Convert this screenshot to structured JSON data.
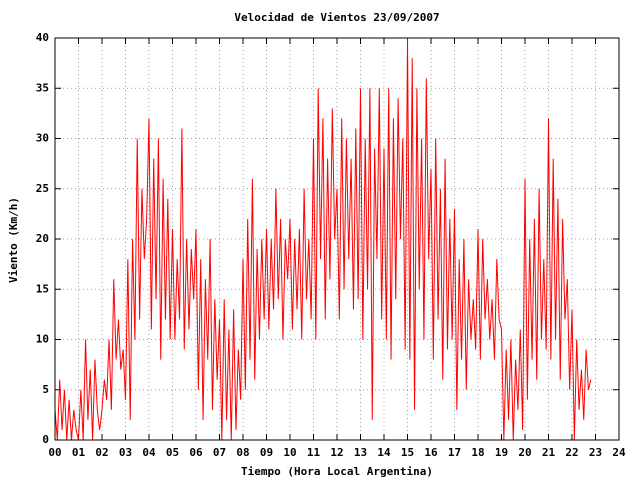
{
  "chart_data": {
    "type": "line",
    "title": "Velocidad de Vientos 23/09/2007",
    "x_label": "Tiempo (Hora Local Argentina)",
    "y_label": "Viento (Km/h)",
    "color": "#ff0000",
    "grid": true,
    "xlim": [
      0,
      24
    ],
    "ylim": [
      0,
      40
    ],
    "xticks": [
      {
        "value": 0,
        "label": "00"
      },
      {
        "value": 1,
        "label": "01"
      },
      {
        "value": 2,
        "label": "02"
      },
      {
        "value": 3,
        "label": "03"
      },
      {
        "value": 4,
        "label": "04"
      },
      {
        "value": 5,
        "label": "05"
      },
      {
        "value": 6,
        "label": "06"
      },
      {
        "value": 7,
        "label": "07"
      },
      {
        "value": 8,
        "label": "08"
      },
      {
        "value": 9,
        "label": "09"
      },
      10,
      11,
      12,
      13,
      14,
      15,
      16,
      17,
      18,
      19,
      20,
      21,
      22,
      23,
      24
    ],
    "yticks": [
      0,
      5,
      10,
      15,
      20,
      25,
      30,
      35,
      40
    ],
    "x": [
      0,
      0.1,
      0.2,
      0.3,
      0.4,
      0.5,
      0.6,
      0.7,
      0.8,
      0.9,
      1,
      1.1,
      1.2,
      1.3,
      1.4,
      1.5,
      1.6,
      1.7,
      1.8,
      1.9,
      2,
      2.1,
      2.2,
      2.3,
      2.4,
      2.5,
      2.6,
      2.7,
      2.8,
      2.9,
      3,
      3.1,
      3.2,
      3.3,
      3.4,
      3.5,
      3.6,
      3.7,
      3.8,
      3.9,
      4,
      4.1,
      4.2,
      4.3,
      4.4,
      4.5,
      4.6,
      4.7,
      4.8,
      4.9,
      5,
      5.1,
      5.2,
      5.3,
      5.4,
      5.5,
      5.6,
      5.7,
      5.8,
      5.9,
      6,
      6.1,
      6.2,
      6.3,
      6.4,
      6.5,
      6.6,
      6.7,
      6.8,
      6.9,
      7,
      7.1,
      7.2,
      7.3,
      7.4,
      7.5,
      7.6,
      7.7,
      7.8,
      7.9,
      8,
      8.1,
      8.2,
      8.3,
      8.4,
      8.5,
      8.6,
      8.7,
      8.8,
      8.9,
      9,
      9.1,
      9.2,
      9.3,
      9.4,
      9.5,
      9.6,
      9.7,
      9.8,
      9.9,
      10,
      10.1,
      10.2,
      10.3,
      10.4,
      10.5,
      10.6,
      10.7,
      10.8,
      10.9,
      11,
      11.1,
      11.2,
      11.3,
      11.4,
      11.5,
      11.6,
      11.7,
      11.8,
      11.9,
      12,
      12.1,
      12.2,
      12.3,
      12.4,
      12.5,
      12.6,
      12.7,
      12.8,
      12.9,
      13,
      13.1,
      13.2,
      13.3,
      13.4,
      13.5,
      13.6,
      13.7,
      13.8,
      13.9,
      14,
      14.1,
      14.2,
      14.3,
      14.4,
      14.5,
      14.6,
      14.7,
      14.8,
      14.9,
      15,
      15.1,
      15.2,
      15.3,
      15.4,
      15.5,
      15.6,
      15.7,
      15.8,
      15.9,
      16,
      16.1,
      16.2,
      16.3,
      16.4,
      16.5,
      16.6,
      16.7,
      16.8,
      16.9,
      17,
      17.1,
      17.2,
      17.3,
      17.4,
      17.5,
      17.6,
      17.7,
      17.8,
      17.9,
      18,
      18.1,
      18.2,
      18.3,
      18.4,
      18.5,
      18.6,
      18.7,
      18.8,
      18.9,
      19,
      19.1,
      19.2,
      19.3,
      19.4,
      19.5,
      19.6,
      19.7,
      19.8,
      19.9,
      20,
      20.1,
      20.2,
      20.3,
      20.4,
      20.5,
      20.6,
      20.7,
      20.8,
      20.9,
      21,
      21.1,
      21.2,
      21.3,
      21.4,
      21.5,
      21.6,
      21.7,
      21.8,
      21.9,
      22,
      22.1,
      22.2,
      22.3,
      22.4,
      22.5,
      22.6,
      22.7,
      22.8
    ],
    "values": [
      3,
      0,
      6,
      1,
      5,
      0,
      4,
      0,
      3,
      1,
      0,
      5,
      0,
      10,
      2,
      7,
      0,
      8,
      3,
      1,
      3,
      6,
      4,
      10,
      3,
      16,
      8,
      12,
      7,
      9,
      4,
      18,
      2,
      20,
      10,
      30,
      12,
      25,
      18,
      22,
      32,
      11,
      28,
      14,
      30,
      8,
      26,
      12,
      24,
      10,
      21,
      10,
      18,
      12,
      31,
      9,
      20,
      11,
      19,
      14,
      21,
      5,
      18,
      2,
      16,
      8,
      20,
      3,
      14,
      6,
      12,
      0,
      14,
      2,
      11,
      0,
      13,
      1,
      9,
      4,
      18,
      5,
      22,
      8,
      26,
      6,
      19,
      10,
      20,
      12,
      21,
      11,
      20,
      13,
      25,
      14,
      22,
      10,
      20,
      16,
      22,
      11,
      20,
      13,
      21,
      10,
      25,
      14,
      20,
      12,
      30,
      10,
      35,
      18,
      32,
      12,
      28,
      16,
      33,
      20,
      25,
      12,
      32,
      15,
      30,
      18,
      28,
      13,
      31,
      14,
      35,
      10,
      30,
      15,
      35,
      2,
      29,
      18,
      35,
      12,
      29,
      10,
      35,
      8,
      32,
      14,
      34,
      20,
      30,
      9,
      40,
      8,
      38,
      3,
      35,
      15,
      30,
      10,
      36,
      18,
      27,
      8,
      30,
      12,
      25,
      6,
      28,
      9,
      22,
      10,
      23,
      3,
      18,
      8,
      20,
      5,
      16,
      10,
      14,
      9,
      21,
      8,
      20,
      12,
      16,
      10,
      14,
      8,
      18,
      12,
      11,
      0,
      9,
      2,
      10,
      0,
      8,
      3,
      11,
      1,
      26,
      4,
      20,
      8,
      22,
      6,
      25,
      10,
      18,
      9,
      32,
      8,
      28,
      10,
      24,
      6,
      22,
      12,
      16,
      5,
      13,
      0,
      10,
      3,
      7,
      2,
      9,
      5,
      6
    ]
  }
}
